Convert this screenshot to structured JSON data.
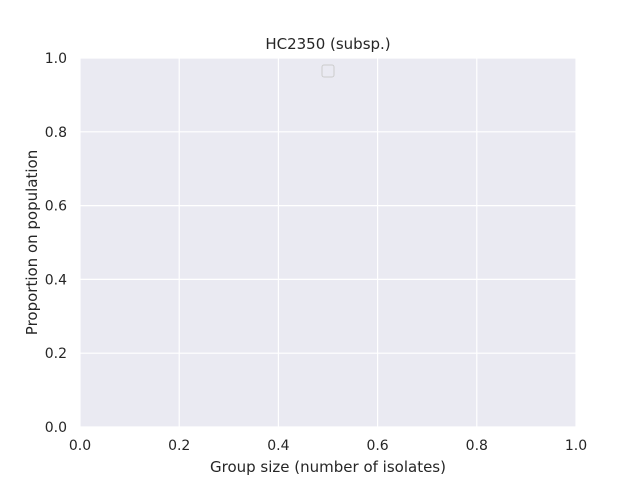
{
  "chart_data": {
    "type": "line",
    "title": "HC2350 (subsp.)",
    "xlabel": "Group size (number of isolates)",
    "ylabel": "Proportion on population",
    "xlim": [
      0.0,
      1.0
    ],
    "ylim": [
      0.0,
      1.0
    ],
    "x_ticks": [
      "0.0",
      "0.2",
      "0.4",
      "0.6",
      "0.8",
      "1.0"
    ],
    "y_ticks": [
      "0.0",
      "0.2",
      "0.4",
      "0.6",
      "0.8",
      "1.0"
    ],
    "series": [],
    "grid": true,
    "legend": {
      "position": "upper center",
      "entries": []
    },
    "colors": {
      "plot_background": "#eaeaf2",
      "grid": "#ffffff",
      "text": "#262626",
      "legend_border": "#cccccc"
    }
  }
}
